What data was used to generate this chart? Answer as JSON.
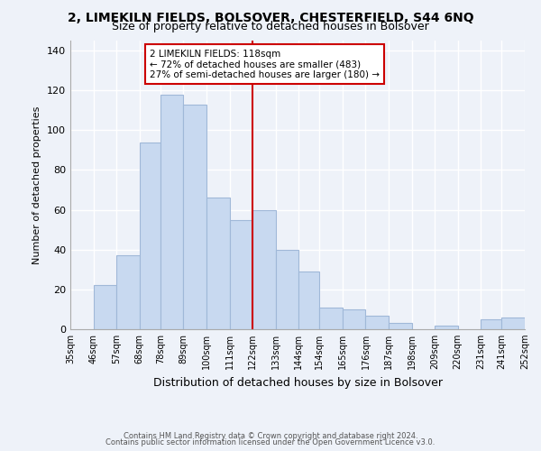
{
  "title1": "2, LIMEKILN FIELDS, BOLSOVER, CHESTERFIELD, S44 6NQ",
  "title2": "Size of property relative to detached houses in Bolsover",
  "xlabel": "Distribution of detached houses by size in Bolsover",
  "ylabel": "Number of detached properties",
  "bin_labels": [
    "35sqm",
    "46sqm",
    "57sqm",
    "68sqm",
    "78sqm",
    "89sqm",
    "100sqm",
    "111sqm",
    "122sqm",
    "133sqm",
    "144sqm",
    "154sqm",
    "165sqm",
    "176sqm",
    "187sqm",
    "198sqm",
    "209sqm",
    "220sqm",
    "231sqm",
    "241sqm",
    "252sqm"
  ],
  "bar_values": [
    0,
    22,
    37,
    94,
    118,
    113,
    66,
    55,
    60,
    40,
    29,
    11,
    10,
    7,
    3,
    0,
    2,
    0,
    5,
    6,
    0
  ],
  "bar_color": "#c8d9f0",
  "bar_edge_color": "#a0b8d8",
  "subject_line_color": "#cc0000",
  "annotation_text": "2 LIMEKILN FIELDS: 118sqm\n← 72% of detached houses are smaller (483)\n27% of semi-detached houses are larger (180) →",
  "annotation_box_color": "#ffffff",
  "annotation_box_edge_color": "#cc0000",
  "ylim": [
    0,
    145
  ],
  "footer1": "Contains HM Land Registry data © Crown copyright and database right 2024.",
  "footer2": "Contains public sector information licensed under the Open Government Licence v3.0.",
  "background_color": "#eef2f9",
  "grid_color": "#ffffff",
  "title1_fontsize": 10,
  "title2_fontsize": 9,
  "bin_edges": [
    35,
    46,
    57,
    68,
    78,
    89,
    100,
    111,
    122,
    133,
    144,
    154,
    165,
    176,
    187,
    198,
    209,
    220,
    231,
    241,
    252
  ]
}
